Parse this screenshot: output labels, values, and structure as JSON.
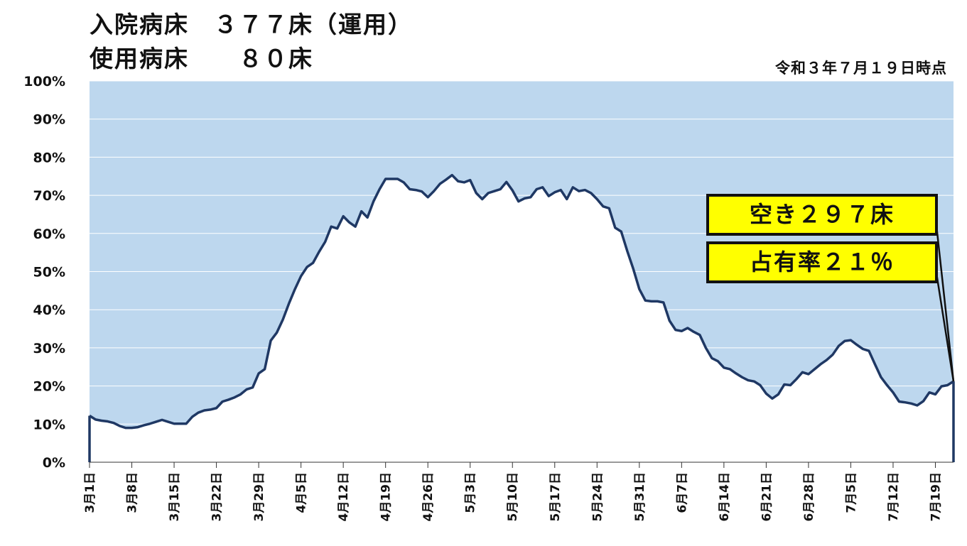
{
  "header": {
    "title_line1": "入院病床　３７７床（運用）",
    "title_line2": "使用病床　　８０床",
    "as_of": "令和３年７月１９日時点"
  },
  "callouts": {
    "free_beds": "空き２９７床",
    "occupancy": "占有率２１％"
  },
  "colors": {
    "fill": "#bdd7ee",
    "line": "#1f3864",
    "callout_bg": "#ffff00"
  },
  "chart_data": {
    "type": "area",
    "title": "",
    "xlabel": "",
    "ylabel": "",
    "ylim": [
      0,
      100
    ],
    "y_ticks": [
      "0%",
      "10%",
      "20%",
      "30%",
      "40%",
      "50%",
      "60%",
      "70%",
      "80%",
      "90%",
      "100%"
    ],
    "x_ticks": [
      "3月1日",
      "3月8日",
      "3月15日",
      "3月22日",
      "3月29日",
      "4月5日",
      "4月12日",
      "4月19日",
      "4月26日",
      "5月3日",
      "5月10日",
      "5月17日",
      "5月24日",
      "5月31日",
      "6月7日",
      "6月14日",
      "6月21日",
      "6月28日",
      "7月5日",
      "7月12日",
      "7月19日"
    ],
    "grid": true,
    "series": [
      {
        "values": [
          12.2,
          11.2,
          10.9,
          10.7,
          10.3,
          9.5,
          9.0,
          9.0,
          9.2,
          9.7,
          10.1,
          10.6,
          11.1,
          10.6,
          10.1,
          10.1,
          10.1,
          11.9,
          13.0,
          13.6,
          13.8,
          14.2,
          15.9,
          16.4,
          17.0,
          17.8,
          19.1,
          19.6,
          23.3,
          24.4,
          31.9,
          34.0,
          37.4,
          41.6,
          45.4,
          48.8,
          51.2,
          52.3,
          55.2,
          57.8,
          61.8,
          61.3,
          64.5,
          62.9,
          61.8,
          65.8,
          64.2,
          68.4,
          71.6,
          74.3,
          74.3,
          74.3,
          73.4,
          71.6,
          71.4,
          71.0,
          69.5,
          71.1,
          73.0,
          74.1,
          75.3,
          73.7,
          73.4,
          74.0,
          70.6,
          69.0,
          70.6,
          71.1,
          71.6,
          73.5,
          71.3,
          68.4,
          69.2,
          69.5,
          71.6,
          72.1,
          69.8,
          70.8,
          71.4,
          69.0,
          72.1,
          71.1,
          71.4,
          70.6,
          69.0,
          67.1,
          66.6,
          61.5,
          60.5,
          55.4,
          50.7,
          45.4,
          42.4,
          42.2,
          42.2,
          41.9,
          37.1,
          34.7,
          34.4,
          35.2,
          34.2,
          33.4,
          30.0,
          27.3,
          26.5,
          24.8,
          24.4,
          23.3,
          22.3,
          21.5,
          21.2,
          20.2,
          18.0,
          16.7,
          17.8,
          20.4,
          20.2,
          21.8,
          23.6,
          23.1,
          24.4,
          25.7,
          26.8,
          28.2,
          30.5,
          31.8,
          32.0,
          30.8,
          29.7,
          29.2,
          25.7,
          22.3,
          20.2,
          18.3,
          15.9,
          15.7,
          15.4,
          14.9,
          16.0,
          18.3,
          17.8,
          19.9,
          20.2,
          21.2
        ]
      }
    ]
  }
}
